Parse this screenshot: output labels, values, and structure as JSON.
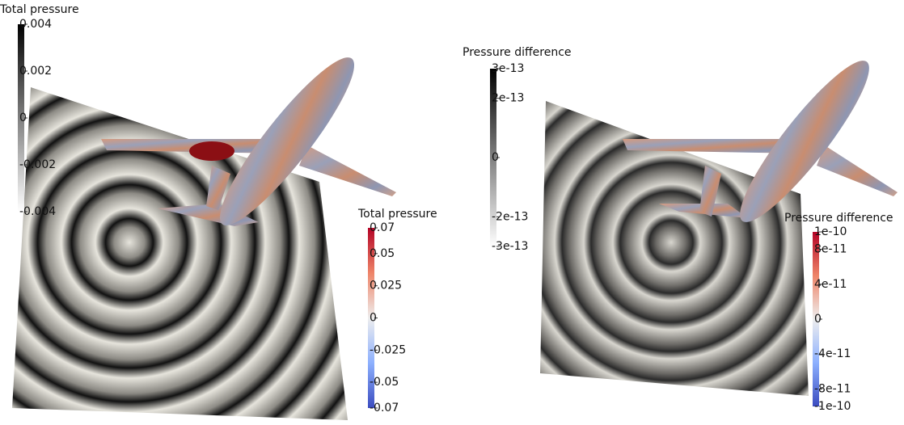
{
  "colorbars": [
    {
      "title": "Total pressure",
      "colormap": "gray",
      "range": [
        -0.004,
        0.004
      ],
      "ticks": [
        0.004,
        0.002,
        0,
        -0.002,
        -0.004
      ]
    },
    {
      "title": "Total pressure",
      "colormap": "coolwarm",
      "range": [
        -0.07,
        0.07
      ],
      "ticks": [
        0.07,
        0.05,
        0.025,
        0,
        -0.025,
        -0.05,
        -0.07
      ]
    },
    {
      "title": "Pressure difference",
      "colormap": "gray",
      "range": [
        -3e-13,
        3e-13
      ],
      "ticks": [
        3e-13,
        2e-13,
        0,
        -2e-13,
        -3e-13
      ]
    },
    {
      "title": "Pressure difference",
      "colormap": "coolwarm",
      "range": [
        -1e-10,
        1e-10
      ],
      "ticks": [
        1e-10,
        8e-11,
        4e-11,
        0,
        -4e-11,
        -8e-11,
        -1e-10
      ]
    }
  ]
}
